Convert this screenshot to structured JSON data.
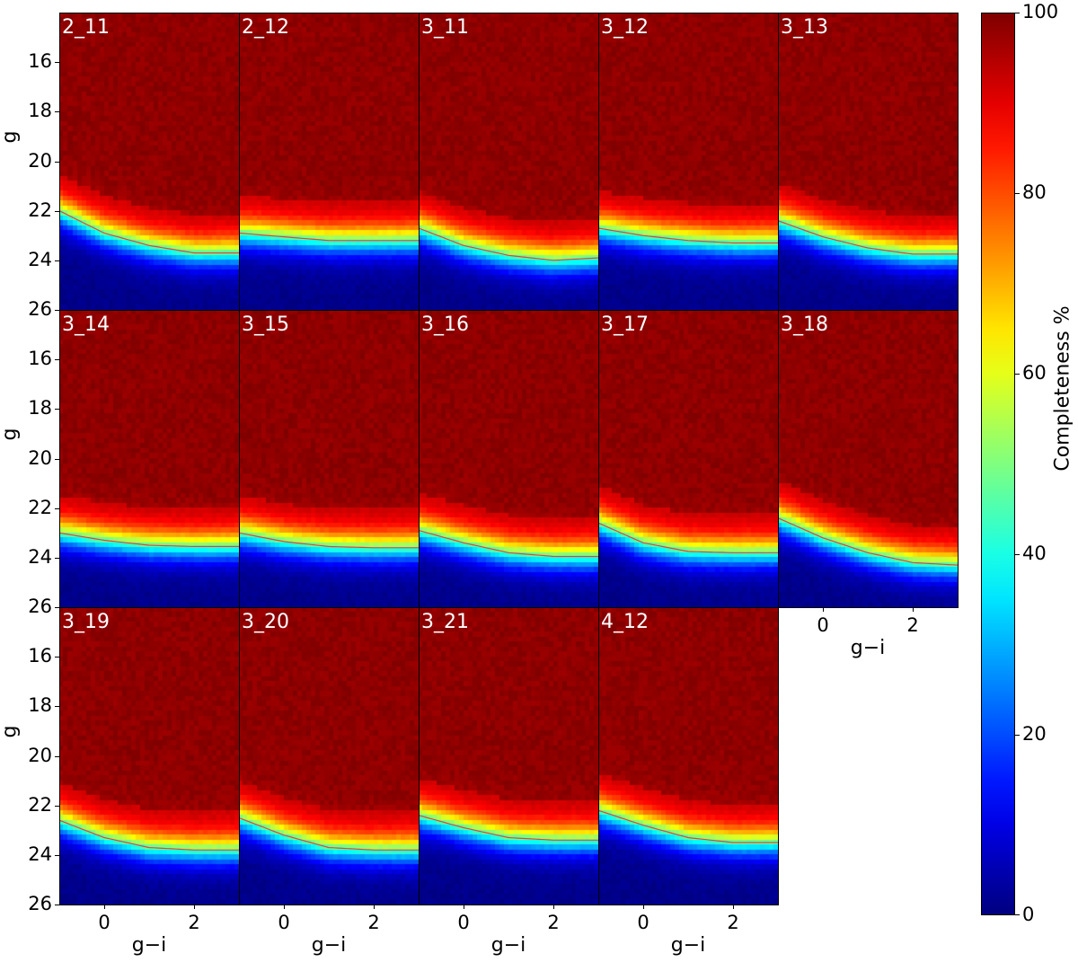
{
  "chart_data": {
    "type": "heatmap",
    "xlabel": "g−i",
    "ylabel": "g",
    "xlim": [
      -1,
      3
    ],
    "ylim": [
      26,
      14
    ],
    "xticks": [
      "0",
      "2"
    ],
    "yticks": [
      "16",
      "18",
      "20",
      "22",
      "24",
      "26"
    ],
    "colorbar": {
      "label": "Completeness %",
      "range": [
        0,
        100
      ],
      "ticks": [
        "0",
        "20",
        "40",
        "60",
        "80",
        "100"
      ],
      "colormap": "jet"
    },
    "curve_x": [
      -1,
      0,
      1,
      2,
      3
    ],
    "panels": [
      {
        "name": "2_11",
        "g50": [
          22.0,
          22.9,
          23.4,
          23.7,
          23.7
        ]
      },
      {
        "name": "2_12",
        "g50": [
          22.9,
          23.05,
          23.2,
          23.2,
          23.2
        ]
      },
      {
        "name": "3_11",
        "g50": [
          22.7,
          23.4,
          23.8,
          24.0,
          23.9
        ]
      },
      {
        "name": "3_12",
        "g50": [
          22.7,
          23.0,
          23.2,
          23.3,
          23.3
        ]
      },
      {
        "name": "3_13",
        "g50": [
          22.4,
          23.05,
          23.5,
          23.75,
          23.75
        ]
      },
      {
        "name": "3_14",
        "g50": [
          23.0,
          23.3,
          23.5,
          23.55,
          23.55
        ]
      },
      {
        "name": "3_15",
        "g50": [
          23.0,
          23.35,
          23.55,
          23.6,
          23.6
        ]
      },
      {
        "name": "3_16",
        "g50": [
          22.9,
          23.4,
          23.8,
          23.95,
          23.95
        ]
      },
      {
        "name": "3_17",
        "g50": [
          22.6,
          23.4,
          23.75,
          23.8,
          23.8
        ]
      },
      {
        "name": "3_18",
        "g50": [
          22.4,
          23.2,
          23.8,
          24.2,
          24.3
        ]
      },
      {
        "name": "3_19",
        "g50": [
          22.6,
          23.3,
          23.7,
          23.8,
          23.8
        ]
      },
      {
        "name": "3_20",
        "g50": [
          22.5,
          23.2,
          23.7,
          23.8,
          23.8
        ]
      },
      {
        "name": "3_21",
        "g50": [
          22.4,
          22.9,
          23.3,
          23.4,
          23.4
        ]
      },
      {
        "name": "4_12",
        "g50": [
          22.2,
          22.8,
          23.3,
          23.5,
          23.5
        ]
      }
    ],
    "curve_color": "#e8403a",
    "grid": false
  }
}
